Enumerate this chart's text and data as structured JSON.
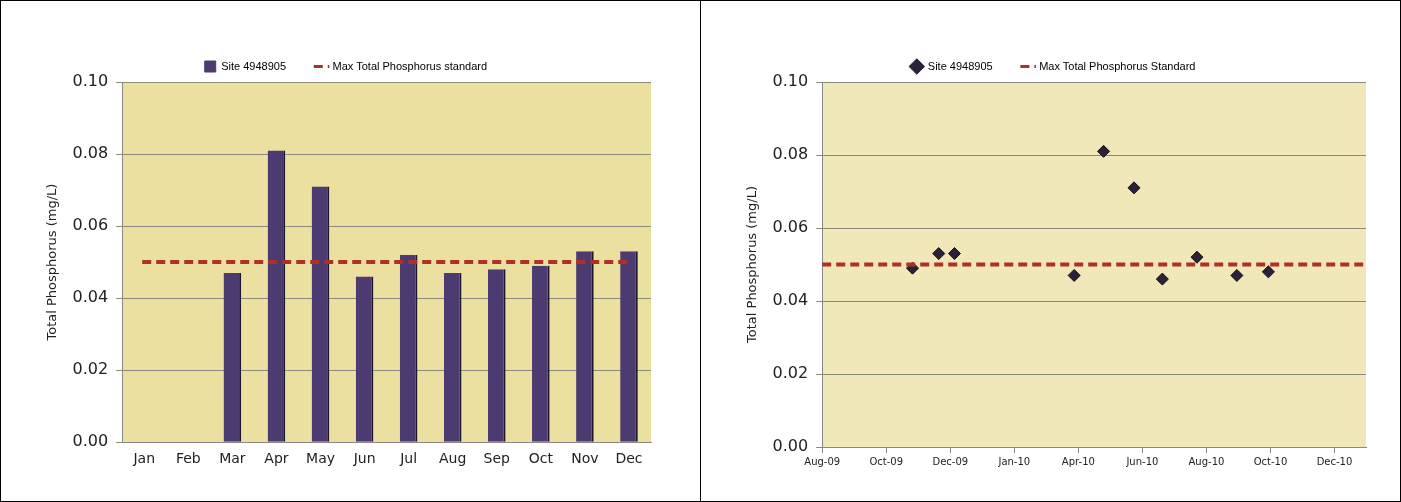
{
  "chart_data": [
    {
      "type": "bar",
      "ylabel": "Total Phosphorus (mg/L)",
      "categories": [
        "Jan",
        "Feb",
        "Mar",
        "Apr",
        "May",
        "Jun",
        "Jul",
        "Aug",
        "Sep",
        "Oct",
        "Nov",
        "Dec"
      ],
      "series": [
        {
          "name": "Site 4948905",
          "color": "#4b3b70",
          "values": [
            null,
            null,
            0.047,
            0.081,
            0.071,
            0.046,
            0.052,
            0.047,
            0.048,
            0.049,
            0.053,
            0.053
          ]
        }
      ],
      "ylim": [
        0,
        0.1
      ],
      "yticks": [
        {
          "value": 0,
          "label": "0.00"
        },
        {
          "value": 0.02,
          "label": "0.02"
        },
        {
          "value": 0.04,
          "label": "0.04"
        },
        {
          "value": 0.06,
          "label": "0.06"
        },
        {
          "value": 0.08,
          "label": "0.08"
        },
        {
          "value": 0.1,
          "label": "0.10"
        }
      ],
      "ref_lines": [
        {
          "axis": "y",
          "value": 0.05,
          "label": "Max Total Phosphorus standard",
          "color": "#b03028",
          "line_style": "dashed"
        }
      ],
      "grid": "y",
      "legend": "top"
    },
    {
      "type": "scatter",
      "ylabel": "Total Phosphorus (mg/L)",
      "marker": "diamond",
      "x": [
        "2009-10-26",
        "2009-11-20",
        "2009-12-05",
        "2010-03-29",
        "2010-04-26",
        "2010-05-25",
        "2010-06-21",
        "2010-07-24",
        "2010-08-31",
        "2010-09-30"
      ],
      "series": [
        {
          "name": "Site 4948905",
          "color": "#2a2238",
          "values": [
            0.049,
            0.053,
            0.053,
            0.047,
            0.081,
            0.071,
            0.046,
            0.052,
            0.047,
            0.048
          ]
        }
      ],
      "xlim": [
        "2009-08-01",
        "2011-01-01"
      ],
      "xticks": [
        {
          "value": "2009-08-01",
          "label": "Aug-09"
        },
        {
          "value": "2009-10-01",
          "label": "Oct-09"
        },
        {
          "value": "2009-12-01",
          "label": "Dec-09"
        },
        {
          "value": "2010-01-31",
          "label": "Jan-10"
        },
        {
          "value": "2010-04-02",
          "label": "Apr-10"
        },
        {
          "value": "2010-06-02",
          "label": "Jun-10"
        },
        {
          "value": "2010-08-02",
          "label": "Aug-10"
        },
        {
          "value": "2010-10-02",
          "label": "Oct-10"
        },
        {
          "value": "2010-12-02",
          "label": "Dec-10"
        }
      ],
      "ylim": [
        0,
        0.1
      ],
      "yticks": [
        {
          "value": 0,
          "label": "0.00"
        },
        {
          "value": 0.02,
          "label": "0.02"
        },
        {
          "value": 0.04,
          "label": "0.04"
        },
        {
          "value": 0.06,
          "label": "0.06"
        },
        {
          "value": 0.08,
          "label": "0.08"
        },
        {
          "value": 0.1,
          "label": "0.10"
        }
      ],
      "ref_lines": [
        {
          "axis": "y",
          "value": 0.05,
          "label": "Max Total Phosphorus Standard",
          "color": "#b03028",
          "line_style": "dashed"
        }
      ],
      "grid": "y",
      "legend": "top"
    }
  ]
}
